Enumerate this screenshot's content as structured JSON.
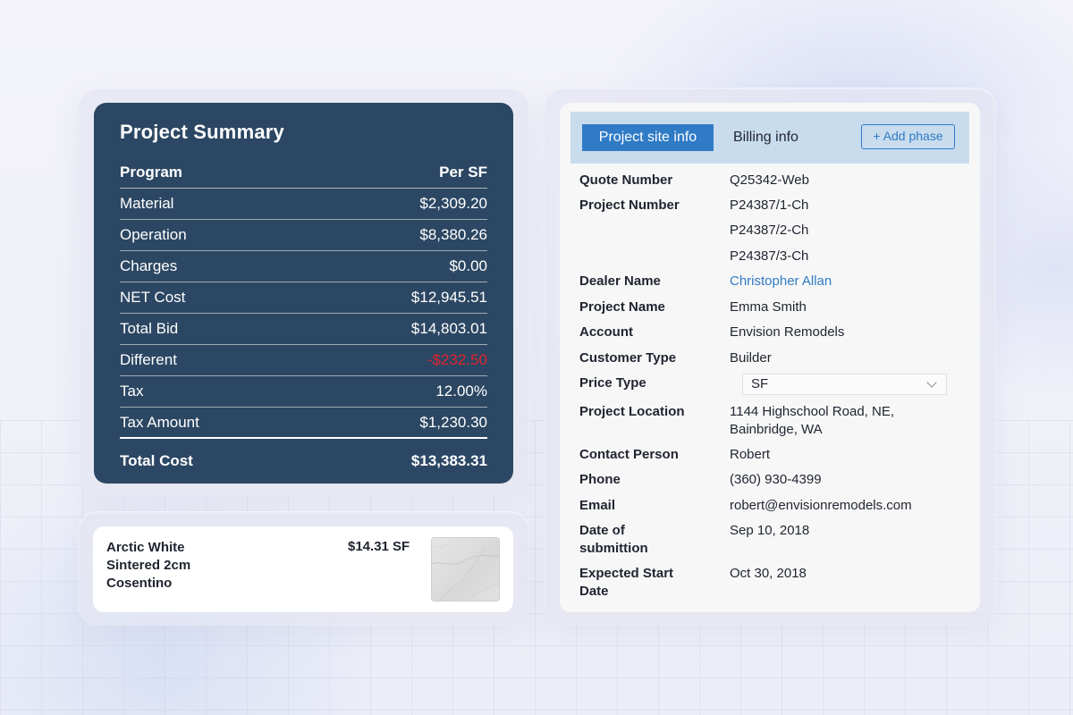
{
  "summary": {
    "title": "Project Summary",
    "header": {
      "label": "Program",
      "value": "Per SF"
    },
    "rows": [
      {
        "label": "Material",
        "value": "$2,309.20"
      },
      {
        "label": "Operation",
        "value": "$8,380.26"
      },
      {
        "label": "Charges",
        "value": "$0.00"
      },
      {
        "label": "NET Cost",
        "value": "$12,945.51"
      },
      {
        "label": "Total Bid",
        "value": "$14,803.01"
      },
      {
        "label": "Different",
        "value": "-$232.50"
      },
      {
        "label": "Tax",
        "value": "12.00%"
      },
      {
        "label": "Tax Amount",
        "value": "$1,230.30"
      }
    ],
    "total": {
      "label": "Total Cost",
      "value": "$13,383.31"
    },
    "colors": {
      "panel": "#2c4763",
      "negative": "#e0242e"
    }
  },
  "product": {
    "name_lines": [
      "Arctic White",
      "Sintered 2cm",
      "Cosentino"
    ],
    "price": "$14.31 SF",
    "swatch_icon": "marble-swatch-image"
  },
  "details": {
    "tabs": {
      "active": "Project site info",
      "other": "Billing info"
    },
    "add_phase_label": "+ Add phase",
    "fields": {
      "quote_number": {
        "label": "Quote Number",
        "value": "Q25342-Web"
      },
      "project_number": {
        "label": "Project Number",
        "values": [
          "P24387/1-Ch",
          "P24387/2-Ch",
          "P24387/3-Ch"
        ]
      },
      "dealer_name": {
        "label": "Dealer Name",
        "value": "Christopher Allan"
      },
      "project_name": {
        "label": "Project Name",
        "value": "Emma Smith"
      },
      "account": {
        "label": "Account",
        "value": "Envision Remodels"
      },
      "customer_type": {
        "label": "Customer Type",
        "value": "Builder"
      },
      "price_type": {
        "label": "Price Type",
        "value": "SF"
      },
      "project_location": {
        "label": "Project Location",
        "value": "1144 Highschool Road, NE, Bainbridge, WA"
      },
      "contact_person": {
        "label": "Contact Person",
        "value": "Robert"
      },
      "phone": {
        "label": "Phone",
        "value": "(360) 930-4399"
      },
      "email": {
        "label": "Email",
        "value": "robert@envisionremodels.com"
      },
      "date_of_submittion": {
        "label": "Date of submittion",
        "value": "Sep 10, 2018"
      },
      "expected_start_date": {
        "label": "Expected Start Date",
        "value": "Oct 30, 2018"
      }
    },
    "colors": {
      "accent": "#2f7bc6",
      "tabbar": "#c9dced"
    }
  }
}
